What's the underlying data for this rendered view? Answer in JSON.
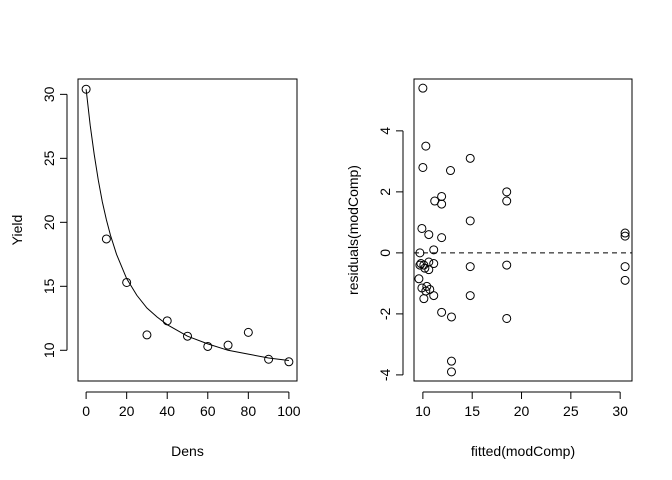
{
  "chart_data": [
    {
      "type": "scatter",
      "title": "",
      "xlabel": "Dens",
      "ylabel": "Yield",
      "xlim": [
        -4,
        104
      ],
      "ylim": [
        7.6,
        31.2
      ],
      "xticks": [
        0,
        20,
        40,
        60,
        80,
        100
      ],
      "xtick_labels": [
        "0",
        "20",
        "40",
        "60",
        "80",
        "100"
      ],
      "yticks": [
        10,
        15,
        20,
        25,
        30
      ],
      "ytick_labels": [
        "10",
        "15",
        "20",
        "25",
        "30"
      ],
      "grid": false,
      "series": [
        {
          "type": "scatter",
          "marker": "open-circle",
          "points": [
            {
              "x": 0,
              "y": 30.4
            },
            {
              "x": 10,
              "y": 18.7
            },
            {
              "x": 20,
              "y": 15.3
            },
            {
              "x": 30,
              "y": 11.2
            },
            {
              "x": 40,
              "y": 12.3
            },
            {
              "x": 50,
              "y": 11.1
            },
            {
              "x": 60,
              "y": 10.3
            },
            {
              "x": 70,
              "y": 10.4
            },
            {
              "x": 80,
              "y": 11.4
            },
            {
              "x": 90,
              "y": 9.3
            },
            {
              "x": 100,
              "y": 9.1
            }
          ]
        },
        {
          "type": "line",
          "style": "solid",
          "points": [
            {
              "x": 0,
              "y": 30.4
            },
            {
              "x": 2,
              "y": 27.6
            },
            {
              "x": 4,
              "y": 25.3
            },
            {
              "x": 6,
              "y": 23.3
            },
            {
              "x": 8,
              "y": 21.6
            },
            {
              "x": 10,
              "y": 20.2
            },
            {
              "x": 12,
              "y": 19.0
            },
            {
              "x": 15,
              "y": 17.5
            },
            {
              "x": 20,
              "y": 15.6
            },
            {
              "x": 25,
              "y": 14.3
            },
            {
              "x": 30,
              "y": 13.3
            },
            {
              "x": 35,
              "y": 12.6
            },
            {
              "x": 40,
              "y": 12.0
            },
            {
              "x": 50,
              "y": 11.1
            },
            {
              "x": 60,
              "y": 10.5
            },
            {
              "x": 70,
              "y": 10.0
            },
            {
              "x": 80,
              "y": 9.7
            },
            {
              "x": 90,
              "y": 9.4
            },
            {
              "x": 100,
              "y": 9.2
            }
          ]
        }
      ]
    },
    {
      "type": "scatter",
      "title": "",
      "xlabel": "fitted(modComp)",
      "ylabel": "residuals(modComp)",
      "xlim": [
        9.1,
        31.2
      ],
      "ylim": [
        -4.2,
        5.7
      ],
      "xticks": [
        10,
        15,
        20,
        25,
        30
      ],
      "xtick_labels": [
        "10",
        "15",
        "20",
        "25",
        "30"
      ],
      "yticks": [
        -4,
        -2,
        0,
        2,
        4
      ],
      "ytick_labels": [
        "-4",
        "-2",
        "0",
        "2",
        "4"
      ],
      "grid": false,
      "reference_line": {
        "y": 0,
        "style": "dashed"
      },
      "series": [
        {
          "type": "scatter",
          "marker": "open-circle",
          "points": [
            {
              "x": 10.0,
              "y": 5.4
            },
            {
              "x": 10.3,
              "y": 3.5
            },
            {
              "x": 10.0,
              "y": 2.8
            },
            {
              "x": 12.8,
              "y": 2.7
            },
            {
              "x": 14.8,
              "y": 3.1
            },
            {
              "x": 18.5,
              "y": 2.0
            },
            {
              "x": 18.5,
              "y": 1.7
            },
            {
              "x": 11.9,
              "y": 1.85
            },
            {
              "x": 11.9,
              "y": 1.6
            },
            {
              "x": 11.2,
              "y": 1.7
            },
            {
              "x": 14.8,
              "y": 1.05
            },
            {
              "x": 9.9,
              "y": 0.8
            },
            {
              "x": 10.6,
              "y": 0.6
            },
            {
              "x": 11.9,
              "y": 0.5
            },
            {
              "x": 11.1,
              "y": 0.1
            },
            {
              "x": 9.7,
              "y": 0.0
            },
            {
              "x": 30.5,
              "y": 0.65
            },
            {
              "x": 30.5,
              "y": 0.55
            },
            {
              "x": 9.8,
              "y": -0.35
            },
            {
              "x": 10.1,
              "y": -0.4
            },
            {
              "x": 10.6,
              "y": -0.3
            },
            {
              "x": 11.1,
              "y": -0.35
            },
            {
              "x": 9.7,
              "y": -0.4
            },
            {
              "x": 10.2,
              "y": -0.5
            },
            {
              "x": 10.6,
              "y": -0.55
            },
            {
              "x": 14.8,
              "y": -0.45
            },
            {
              "x": 18.5,
              "y": -0.4
            },
            {
              "x": 30.5,
              "y": -0.45
            },
            {
              "x": 9.6,
              "y": -0.85
            },
            {
              "x": 30.5,
              "y": -0.9
            },
            {
              "x": 9.9,
              "y": -1.15
            },
            {
              "x": 10.4,
              "y": -1.1
            },
            {
              "x": 10.7,
              "y": -1.2
            },
            {
              "x": 10.3,
              "y": -1.25
            },
            {
              "x": 11.1,
              "y": -1.4
            },
            {
              "x": 10.1,
              "y": -1.5
            },
            {
              "x": 14.8,
              "y": -1.4
            },
            {
              "x": 11.9,
              "y": -1.95
            },
            {
              "x": 12.9,
              "y": -2.1
            },
            {
              "x": 18.5,
              "y": -2.15
            },
            {
              "x": 12.9,
              "y": -3.55
            },
            {
              "x": 12.9,
              "y": -3.9
            }
          ]
        }
      ]
    }
  ]
}
